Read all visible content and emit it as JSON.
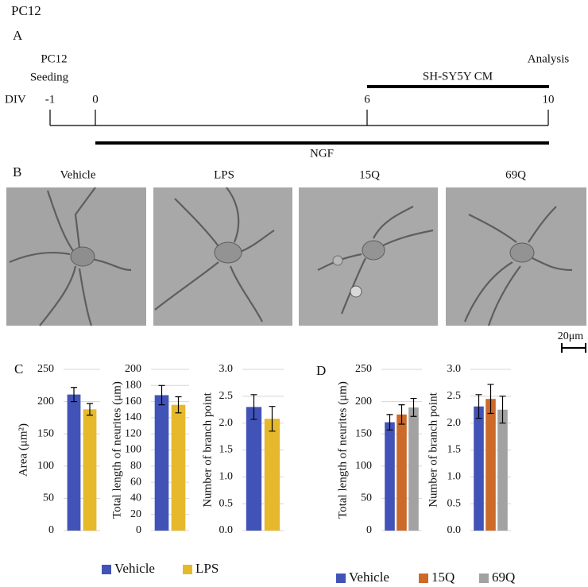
{
  "figure_title": "PC12",
  "panel_a": {
    "label": "A",
    "seeding_lines": [
      "PC12",
      "Seeding"
    ],
    "analysis": "Analysis",
    "cm": "SH-SY5Y CM",
    "div": "DIV",
    "days": [
      "-1",
      "0",
      "6",
      "10"
    ],
    "ngf": "NGF"
  },
  "panel_b": {
    "label": "B",
    "conditions": [
      "Vehicle",
      "LPS",
      "15Q",
      "69Q"
    ],
    "scale_bar": "20μm"
  },
  "panel_c": {
    "label": "C"
  },
  "panel_d": {
    "label": "D"
  },
  "chart_data": [
    {
      "type": "bar",
      "y_label": "Area (μm²)",
      "ylim": [
        0,
        250
      ],
      "yticks": [
        0,
        50,
        100,
        150,
        200,
        250
      ],
      "grid": true,
      "series": [
        {
          "name": "Vehicle",
          "color": "#4253b8",
          "values": [
            211
          ],
          "errors": [
            11
          ]
        },
        {
          "name": "LPS",
          "color": "#e6b92c",
          "values": [
            188
          ],
          "errors": [
            9
          ]
        }
      ]
    },
    {
      "type": "bar",
      "y_label": "Total length of neurites (μm)",
      "ylim": [
        0,
        200
      ],
      "yticks": [
        0,
        20,
        40,
        60,
        80,
        100,
        120,
        140,
        160,
        180,
        200
      ],
      "grid": true,
      "series": [
        {
          "name": "Vehicle",
          "color": "#4253b8",
          "values": [
            168
          ],
          "errors": [
            12
          ]
        },
        {
          "name": "LPS",
          "color": "#e6b92c",
          "values": [
            156
          ],
          "errors": [
            10
          ]
        }
      ]
    },
    {
      "type": "bar",
      "y_label": "Number of branch point",
      "ylim": [
        0,
        3
      ],
      "yticks": [
        {
          "value": 0,
          "label": "0.0"
        },
        {
          "value": 0.5,
          "label": "0.5"
        },
        {
          "value": 1,
          "label": "1.0"
        },
        {
          "value": 1.5,
          "label": "1.5"
        },
        {
          "value": 2,
          "label": "2.0"
        },
        {
          "value": 2.5,
          "label": "2.5"
        },
        {
          "value": 3,
          "label": "3.0"
        }
      ],
      "grid": true,
      "series": [
        {
          "name": "Vehicle",
          "color": "#4253b8",
          "values": [
            2.3
          ],
          "errors": [
            0.23
          ]
        },
        {
          "name": "LPS",
          "color": "#e6b92c",
          "values": [
            2.08
          ],
          "errors": [
            0.23
          ]
        }
      ]
    },
    {
      "type": "bar",
      "y_label": "Total length of neurites (μm)",
      "ylim": [
        0,
        250
      ],
      "yticks": [
        0,
        50,
        100,
        150,
        200,
        250
      ],
      "grid": true,
      "series": [
        {
          "name": "Vehicle",
          "color": "#4253b8",
          "values": [
            168
          ],
          "errors": [
            12
          ]
        },
        {
          "name": "15Q",
          "color": "#cc6a2a",
          "values": [
            180
          ],
          "errors": [
            15
          ]
        },
        {
          "name": "69Q",
          "color": "#a2a2a2",
          "values": [
            191
          ],
          "errors": [
            14
          ]
        }
      ]
    },
    {
      "type": "bar",
      "y_label": "Number of branch point",
      "ylim": [
        0,
        3
      ],
      "yticks": [
        {
          "value": 0,
          "label": "0.0"
        },
        {
          "value": 0.5,
          "label": "0.5"
        },
        {
          "value": 1,
          "label": "1.0"
        },
        {
          "value": 1.5,
          "label": "1.5"
        },
        {
          "value": 2,
          "label": "2.0"
        },
        {
          "value": 2.5,
          "label": "2.5"
        },
        {
          "value": 3,
          "label": "3.0"
        }
      ],
      "grid": true,
      "series": [
        {
          "name": "Vehicle",
          "color": "#4253b8",
          "values": [
            2.31
          ],
          "errors": [
            0.22
          ]
        },
        {
          "name": "15Q",
          "color": "#cc6a2a",
          "values": [
            2.45
          ],
          "errors": [
            0.27
          ]
        },
        {
          "name": "69Q",
          "color": "#a2a2a2",
          "values": [
            2.25
          ],
          "errors": [
            0.25
          ]
        }
      ]
    }
  ]
}
